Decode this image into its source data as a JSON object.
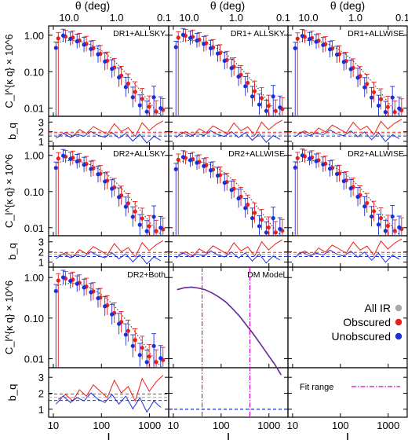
{
  "axis": {
    "top_label": "θ (deg)",
    "top_ticks": [
      "10.0",
      "1.0",
      "0.1"
    ],
    "bottom_ticks": [
      "10",
      "100",
      "1000"
    ],
    "y_cl_ticks": [
      "1.00",
      "0.10",
      "0.01"
    ],
    "y_bq_ticks": [
      "3",
      "2",
      "1"
    ],
    "y_cl_label": "C_l^{κ q} × 10^6",
    "y_bq_label": "b_q",
    "x_scale": "log",
    "y_cl_scale": "log",
    "xlim": [
      8,
      2500
    ],
    "y_cl_lim": [
      0.006,
      1.8
    ],
    "y_bq_lim": [
      0.5,
      3.6
    ]
  },
  "legend": {
    "all_ir": "All IR",
    "obscured": "Obscured",
    "unobscured": "Unobscured",
    "fit_range": "Fit range"
  },
  "colors": {
    "all_ir": "#a8a8a8",
    "obscured": "#e8201c",
    "unobscured": "#1a2fd6",
    "model": "#7b1fa2",
    "fit_range": "#d000c0",
    "bq_dashed_red": "#e8201c",
    "bq_dashed_blue": "#1a2fd6",
    "bq_dashed_gray": "#a8a8a8"
  },
  "panel_labels": [
    "DR1+ALLSKY",
    "DR1+ ALLSKY",
    "DR1+ALLWISE",
    "DR2+ALLSKY",
    "DR2+ALLWISE",
    "DR2+ALLWISE",
    "DR2+Both",
    "DM Model",
    ""
  ],
  "chart_data": {
    "type": "scatter",
    "x": [
      12,
      17,
      24,
      33,
      46,
      64,
      90,
      125,
      175,
      245,
      340,
      475,
      665,
      930,
      1300,
      1800
    ],
    "fit_range": [
      40,
      400
    ],
    "series": [
      {
        "name": "Obscured",
        "cl": [
          0.82,
          0.92,
          0.86,
          0.72,
          0.58,
          0.44,
          0.31,
          0.2,
          0.13,
          0.078,
          0.047,
          0.028,
          0.018,
          0.011,
          0.008,
          0.009
        ],
        "bq": [
          1.7,
          2.0,
          1.6,
          2.3,
          1.9,
          2.6,
          2.2,
          1.8,
          2.9,
          2.1,
          2.5,
          1.6,
          3.0,
          2.2,
          2.8,
          3.2
        ]
      },
      {
        "name": "Unobscured",
        "cl": [
          0.45,
          0.98,
          0.8,
          0.68,
          0.55,
          0.42,
          0.3,
          0.19,
          0.12,
          0.07,
          0.038,
          0.02,
          0.012,
          0.008,
          0.02,
          0.01
        ],
        "bq": [
          1.4,
          1.9,
          1.5,
          1.8,
          1.6,
          2.1,
          1.7,
          1.5,
          2.0,
          1.4,
          1.9,
          1.1,
          1.8,
          0.9,
          1.6,
          1.2
        ]
      }
    ],
    "model_cl": [
      0.5,
      0.56,
      0.58,
      0.55,
      0.5,
      0.42,
      0.33,
      0.25,
      0.17,
      0.11,
      0.067,
      0.04,
      0.023,
      0.013,
      0.0075,
      0.004
    ],
    "bq_lines": {
      "obscured": 1.95,
      "unobscured": 1.55,
      "all_ir": 1.75
    }
  }
}
